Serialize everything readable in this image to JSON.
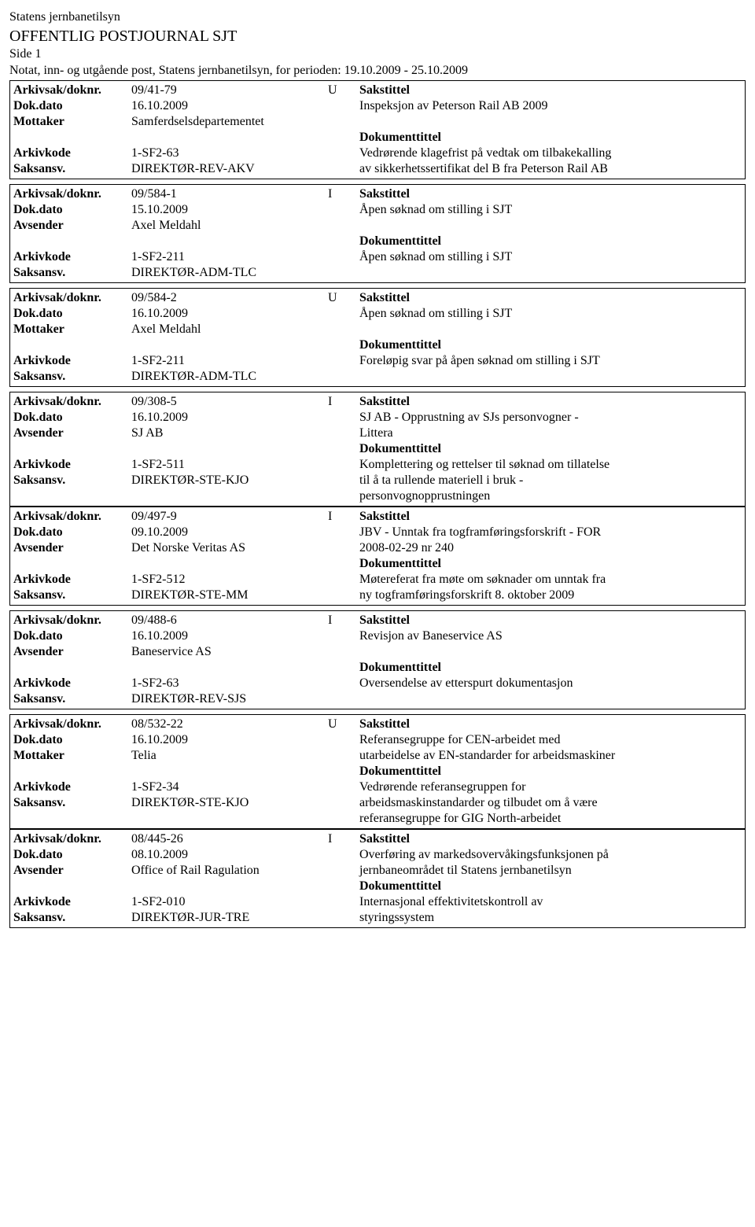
{
  "header": {
    "org": "Statens jernbanetilsyn",
    "title": "OFFENTLIG POSTJOURNAL SJT",
    "page": "Side 1",
    "subtitle": "Notat, inn- og utgående post, Statens jernbanetilsyn, for perioden: 19.10.2009 - 25.10.2009"
  },
  "labels": {
    "arkivsak": "Arkivsak/doknr.",
    "dokdato": "Dok.dato",
    "mottaker": "Mottaker",
    "avsender": "Avsender",
    "arkivkode": "Arkivkode",
    "saksansv": "Saksansv.",
    "sakstittel": "Sakstittel",
    "dokumenttittel": "Dokumenttittel"
  },
  "records": [
    {
      "arkivsak": "09/41-79",
      "io": "U",
      "dokdato": "16.10.2009",
      "party_label": "Mottaker",
      "party": "Samferdselsdepartementet",
      "arkivkode": "1-SF2-63",
      "saksansv": "DIREKTØR-REV-AKV",
      "sakstittel": "Inspeksjon av Peterson Rail AB 2009",
      "saks_extra": "",
      "doktittel1": "Vedrørende klagefrist på vedtak om tilbakekalling",
      "doktittel2": "av sikkerhetssertifikat del B fra Peterson Rail AB"
    },
    {
      "arkivsak": "09/584-1",
      "io": "I",
      "dokdato": "15.10.2009",
      "party_label": "Avsender",
      "party": "Axel Meldahl",
      "arkivkode": "1-SF2-211",
      "saksansv": "DIREKTØR-ADM-TLC",
      "sakstittel": "Åpen søknad om stilling i SJT",
      "saks_extra": "",
      "doktittel1": "Åpen søknad om stilling i SJT",
      "doktittel2": ""
    },
    {
      "arkivsak": "09/584-2",
      "io": "U",
      "dokdato": "16.10.2009",
      "party_label": "Mottaker",
      "party": "Axel Meldahl",
      "arkivkode": "1-SF2-211",
      "saksansv": "DIREKTØR-ADM-TLC",
      "sakstittel": "Åpen søknad om stilling i SJT",
      "saks_extra": "",
      "doktittel1": "Foreløpig svar på åpen søknad om stilling i SJT",
      "doktittel2": ""
    },
    {
      "arkivsak": "09/308-5",
      "io": "I",
      "dokdato": "16.10.2009",
      "party_label": "Avsender",
      "party": "SJ AB",
      "arkivkode": "1-SF2-511",
      "saksansv": "DIREKTØR-STE-KJO",
      "sakstittel": "SJ AB - Opprustning av SJs personvogner -",
      "saks_extra": "Littera",
      "doktittel1": "Komplettering og rettelser til søknad om tillatelse",
      "doktittel2": "til å ta rullende materiell i bruk -",
      "doktittel3": "personvognopprustningen",
      "no_bottom_margin": true
    },
    {
      "arkivsak": "09/497-9",
      "io": "I",
      "dokdato": "09.10.2009",
      "party_label": "Avsender",
      "party": "Det Norske Veritas AS",
      "arkivkode": "1-SF2-512",
      "saksansv": "DIREKTØR-STE-MM",
      "sakstittel": "JBV - Unntak fra togframføringsforskrift - FOR",
      "saks_extra": "2008-02-29 nr 240",
      "doktittel1": "Møtereferat fra møte om søknader om unntak fra",
      "doktittel2": "ny togframføringsforskrift 8. oktober 2009"
    },
    {
      "arkivsak": "09/488-6",
      "io": "I",
      "dokdato": "16.10.2009",
      "party_label": "Avsender",
      "party": "Baneservice AS",
      "arkivkode": "1-SF2-63",
      "saksansv": "DIREKTØR-REV-SJS",
      "sakstittel": "Revisjon av Baneservice AS",
      "saks_extra": "",
      "doktittel1": "Oversendelse av etterspurt dokumentasjon",
      "doktittel2": ""
    },
    {
      "arkivsak": "08/532-22",
      "io": "U",
      "dokdato": "16.10.2009",
      "party_label": "Mottaker",
      "party": "Telia",
      "arkivkode": "1-SF2-34",
      "saksansv": "DIREKTØR-STE-KJO",
      "sakstittel": "Referansegruppe for CEN-arbeidet med",
      "saks_extra": "utarbeidelse av EN-standarder for arbeidsmaskiner",
      "doktittel1": "Vedrørende referansegruppen for",
      "doktittel2": "arbeidsmaskinstandarder og tilbudet om å være",
      "doktittel3": "referansegruppe for GIG North-arbeidet",
      "no_bottom_margin": true
    },
    {
      "arkivsak": "08/445-26",
      "io": "I",
      "dokdato": "08.10.2009",
      "party_label": "Avsender",
      "party": "Office of Rail Ragulation",
      "arkivkode": "1-SF2-010",
      "saksansv": "DIREKTØR-JUR-TRE",
      "sakstittel": "Overføring av markedsovervåkingsfunksjonen på",
      "saks_extra": "jernbaneområdet til Statens jernbanetilsyn",
      "doktittel1": "Internasjonal effektivitetskontroll av",
      "doktittel2": "styringssystem"
    }
  ]
}
